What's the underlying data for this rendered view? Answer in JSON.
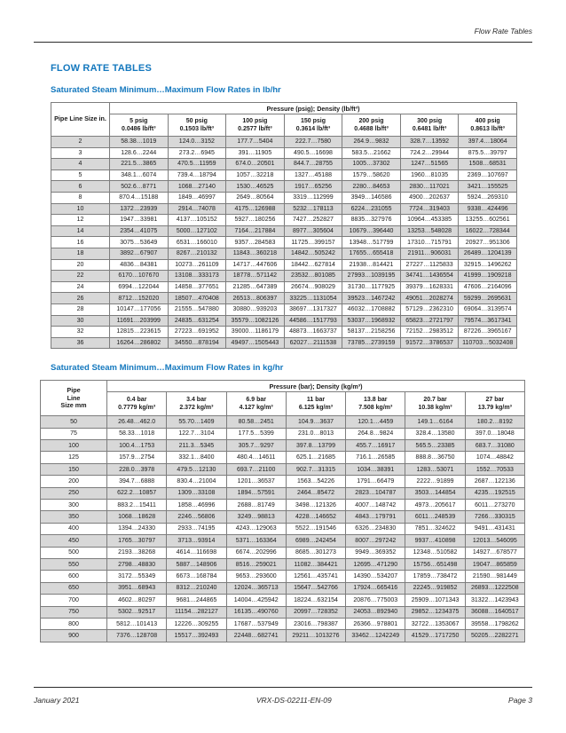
{
  "page": {
    "running_header": "Flow Rate Tables",
    "title": "FLOW RATE TABLES",
    "footer": {
      "left": "January 2021",
      "center": "VRX-DS-02211-EN-09",
      "right": "Page 3"
    }
  },
  "colors": {
    "accent_blue": "#1478be",
    "row_stripe": "#d8d8d8"
  },
  "table1": {
    "subtitle": "Saturated Steam Minimum…Maximum Flow Rates in lb/hr",
    "corner_header": "Pipe Line Size in.",
    "group_header": "Pressure (psig); Density (lb/ft³)",
    "columns": [
      {
        "pressure": "5 psig",
        "density": "0.0486 lb/ft³"
      },
      {
        "pressure": "50 psig",
        "density": "0.1503 lb/ft³"
      },
      {
        "pressure": "100 psig",
        "density": "0.2577 lb/ft³"
      },
      {
        "pressure": "150 psig",
        "density": "0.3614 lb/ft³"
      },
      {
        "pressure": "200 psig",
        "density": "0.4688 lb/ft³"
      },
      {
        "pressure": "300 psig",
        "density": "0.6481 lb/ft³"
      },
      {
        "pressure": "400 psig",
        "density": "0.8613 lb/ft³"
      }
    ],
    "rows": [
      {
        "size": "2",
        "values": [
          "58.38…1019",
          "124.0…3152",
          "177.7…5404",
          "222.7…7580",
          "264.9…9832",
          "328.7…13592",
          "397.4…18064"
        ]
      },
      {
        "size": "3",
        "values": [
          "128.6…2244",
          "273.2…6945",
          "391…11905",
          "490.5…16698",
          "583.5…21662",
          "724.2…29944",
          "875.5…39797"
        ]
      },
      {
        "size": "4",
        "values": [
          "221.5…3865",
          "470.5…11959",
          "674.0…20501",
          "844.7…28755",
          "1005…37302",
          "1247…51565",
          "1508…68531"
        ]
      },
      {
        "size": "5",
        "values": [
          "348.1…6074",
          "739.4…18794",
          "1057…32218",
          "1327…45188",
          "1579…58620",
          "1960…81035",
          "2369…107697"
        ]
      },
      {
        "size": "6",
        "values": [
          "502.6…8771",
          "1068…27140",
          "1530…46525",
          "1917…65256",
          "2280…84653",
          "2830…117021",
          "3421…155525"
        ]
      },
      {
        "size": "8",
        "values": [
          "870.4…15188",
          "1849…46997",
          "2649…80564",
          "3319…112999",
          "3949…146586",
          "4900…202637",
          "5924…269310"
        ]
      },
      {
        "size": "10",
        "values": [
          "1372…23939",
          "2914…74078",
          "4175…126988",
          "5232…178113",
          "6224…231055",
          "7724…319403",
          "9338…424496"
        ]
      },
      {
        "size": "12",
        "values": [
          "1947…33981",
          "4137…105152",
          "5927…180256",
          "7427…252827",
          "8835…327976",
          "10964…453385",
          "13255…602561"
        ]
      },
      {
        "size": "14",
        "values": [
          "2354…41075",
          "5000…127102",
          "7164…217884",
          "8977…305604",
          "10679…396440",
          "13253…548028",
          "16022…728344"
        ]
      },
      {
        "size": "16",
        "values": [
          "3075…53649",
          "6531…166010",
          "9357…284583",
          "11725…399157",
          "13948…517799",
          "17310…715791",
          "20927…951306"
        ]
      },
      {
        "size": "18",
        "values": [
          "3892…67907",
          "8267…210132",
          "11843…360218",
          "14842…505242",
          "17655…655418",
          "21911…906031",
          "26489…1204139"
        ]
      },
      {
        "size": "20",
        "values": [
          "4836…84381",
          "10273…261109",
          "14717…447606",
          "18442…627814",
          "21938…814421",
          "27227…1125833",
          "32915…1496262"
        ]
      },
      {
        "size": "22",
        "values": [
          "6170…107670",
          "13108…333173",
          "18778…571142",
          "23532…801085",
          "27993…1039195",
          "34741…1436554",
          "41999…1909218"
        ]
      },
      {
        "size": "24",
        "values": [
          "6994…122044",
          "14858…377651",
          "21285…647389",
          "26674…908029",
          "31730…1177925",
          "39379…1628331",
          "47606…2164096"
        ]
      },
      {
        "size": "26",
        "values": [
          "8712…152020",
          "18507…470408",
          "26513…806397",
          "33225…1131054",
          "39523…1467242",
          "49051…2028274",
          "59299…2695631"
        ]
      },
      {
        "size": "28",
        "values": [
          "10147…177056",
          "21555…547880",
          "30880…939203",
          "38697…1317327",
          "46032…1708882",
          "57129…2362310",
          "69064…3139574"
        ]
      },
      {
        "size": "30",
        "values": [
          "11691…203999",
          "24835…631254",
          "35579…1082126",
          "44586…1517793",
          "53037…1968932",
          "65823…2721797",
          "79574…3617341"
        ]
      },
      {
        "size": "32",
        "values": [
          "12815…223615",
          "27223…691952",
          "39000…1186179",
          "48873…1663737",
          "58137…2158256",
          "72152…2983512",
          "87226…3965167"
        ]
      },
      {
        "size": "36",
        "values": [
          "16264…286802",
          "34550…878194",
          "49497…1505443",
          "62027…2111538",
          "73785…2739159",
          "91572…3786537",
          "110703…5032408"
        ]
      }
    ]
  },
  "table2": {
    "subtitle": "Saturated Steam Minimum…Maximum Flow Rates in kg/hr",
    "corner_header": "Pipe\nLine\nSize mm",
    "group_header": "Pressure (bar); Density (kg/m³)",
    "columns": [
      {
        "pressure": "0.4 bar",
        "density": "0.7779 kg/m³"
      },
      {
        "pressure": "3.4 bar",
        "density": "2.372 kg/m³"
      },
      {
        "pressure": "6.9 bar",
        "density": "4.127 kg/m³"
      },
      {
        "pressure": "11 bar",
        "density": "6.125 kg/m³"
      },
      {
        "pressure": "13.8 bar",
        "density": "7.508 kg/m³"
      },
      {
        "pressure": "20.7 bar",
        "density": "10.38 kg/m³"
      },
      {
        "pressure": "27 bar",
        "density": "13.79 kg/m³"
      }
    ],
    "rows": [
      {
        "size": "50",
        "values": [
          "26.48…462.0",
          "55.70…1409",
          "80.58…2451",
          "104.9…3637",
          "120.1…4459",
          "149.1…6164",
          "180.2…8192"
        ]
      },
      {
        "size": "75",
        "values": [
          "58.33…1018",
          "122.7…3104",
          "177.5…5399",
          "231.0…8013",
          "264.8…9824",
          "328.4…13580",
          "397.0…18048"
        ]
      },
      {
        "size": "100",
        "values": [
          "100.4…1753",
          "211.3…5345",
          "305.7…9297",
          "397.8…13799",
          "455.7…16917",
          "565.5…23385",
          "683.7…31080"
        ]
      },
      {
        "size": "125",
        "values": [
          "157.9…2754",
          "332.1…8400",
          "480.4…14611",
          "625.1…21685",
          "716.1…26585",
          "888.8…36750",
          "1074…48842"
        ]
      },
      {
        "size": "150",
        "values": [
          "228.0…3978",
          "479.5…12130",
          "693.7…21100",
          "902.7…31315",
          "1034…38391",
          "1283…53071",
          "1552…70533"
        ]
      },
      {
        "size": "200",
        "values": [
          "394.7…6888",
          "830.4…21004",
          "1201…36537",
          "1563…54226",
          "1791…66479",
          "2222…91899",
          "2687…122136"
        ]
      },
      {
        "size": "250",
        "values": [
          "622.2…10857",
          "1309…33108",
          "1894…57591",
          "2464…85472",
          "2823…104787",
          "3503…144854",
          "4235…192515"
        ]
      },
      {
        "size": "300",
        "values": [
          "883.2…15411",
          "1858…46996",
          "2688…81749",
          "3498…121326",
          "4007…148742",
          "4973…205617",
          "6011…273270"
        ]
      },
      {
        "size": "350",
        "values": [
          "1068…18628",
          "2246…56806",
          "3249…98813",
          "4228…146652",
          "4843…179791",
          "6011…248539",
          "7266…330315"
        ]
      },
      {
        "size": "400",
        "values": [
          "1394…24330",
          "2933…74195",
          "4243…129063",
          "5522…191546",
          "6326…234830",
          "7851…324622",
          "9491…431431"
        ]
      },
      {
        "size": "450",
        "values": [
          "1765…30797",
          "3713…93914",
          "5371…163364",
          "6989…242454",
          "8007…297242",
          "9937…410898",
          "12013…546095"
        ]
      },
      {
        "size": "500",
        "values": [
          "2193…38268",
          "4614…116698",
          "6674…202996",
          "8685…301273",
          "9949…369352",
          "12348…510582",
          "14927…678577"
        ]
      },
      {
        "size": "550",
        "values": [
          "2798…48830",
          "5887…148906",
          "8516…259021",
          "11082…384421",
          "12695…471290",
          "15756…651498",
          "19047…865859"
        ]
      },
      {
        "size": "600",
        "values": [
          "3172…55349",
          "6673…168784",
          "9653…293600",
          "12561…435741",
          "14390…534207",
          "17859…738472",
          "21590…981449"
        ]
      },
      {
        "size": "650",
        "values": [
          "3951…68943",
          "8312…210240",
          "12024…365713",
          "15647…542766",
          "17924…665416",
          "22245…919852",
          "26893…1222508"
        ]
      },
      {
        "size": "700",
        "values": [
          "4602…80297",
          "9681…244865",
          "14004…425942",
          "18224…632154",
          "20876…775003",
          "25909…1071343",
          "31322…1423943"
        ]
      },
      {
        "size": "750",
        "values": [
          "5302…92517",
          "11154…282127",
          "16135…490760",
          "20997…728352",
          "24053…892940",
          "29852…1234375",
          "36088…1640517"
        ]
      },
      {
        "size": "800",
        "values": [
          "5812…101413",
          "12226…309255",
          "17687…537949",
          "23016…798387",
          "26366…978801",
          "32722…1353067",
          "39558…1798262"
        ]
      },
      {
        "size": "900",
        "values": [
          "7376…128708",
          "15517…392493",
          "22448…682741",
          "29211…1013276",
          "33462…1242249",
          "41529…1717250",
          "50205…2282271"
        ]
      }
    ]
  }
}
